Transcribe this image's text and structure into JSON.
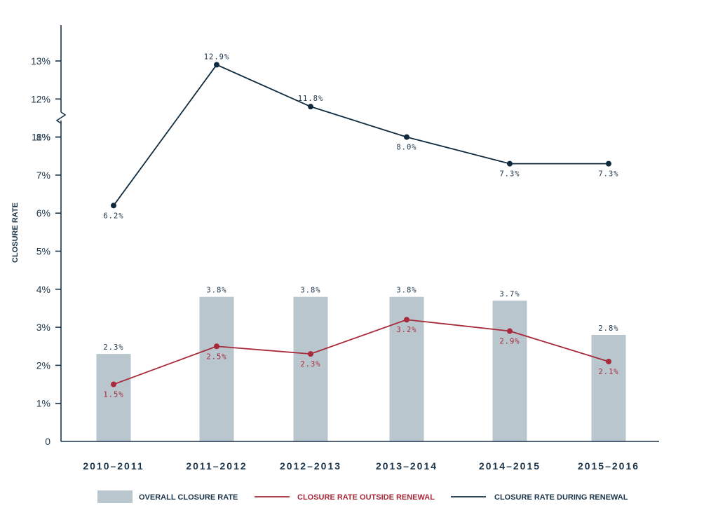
{
  "chart_data": {
    "type": "bar",
    "ylabel": "CLOSURE RATE",
    "xlabel": "",
    "categories": [
      "2010–2011",
      "2011–2012",
      "2012–2013",
      "2013–2014",
      "2014–2015",
      "2015–2016"
    ],
    "yticks": [
      "0",
      "1%",
      "2%",
      "3%",
      "4%",
      "5%",
      "6%",
      "7%",
      "8%",
      "11%",
      "12%",
      "13%"
    ],
    "axis_break": "between 8% and 11%",
    "ylim": [
      0,
      13
    ],
    "grid": false,
    "legend_position": "bottom",
    "series": [
      {
        "name": "OVERALL CLOSURE RATE",
        "type": "bar",
        "values": [
          2.3,
          3.8,
          3.8,
          3.8,
          3.7,
          2.8
        ],
        "labels": [
          "2.3%",
          "3.8%",
          "3.8%",
          "3.8%",
          "3.7%",
          "2.8%"
        ],
        "color": "#b9c6ce"
      },
      {
        "name": "CLOSURE RATE OUTSIDE RENEWAL",
        "type": "line",
        "values": [
          1.5,
          2.5,
          2.3,
          3.2,
          2.9,
          2.1
        ],
        "labels": [
          "1.5%",
          "2.5%",
          "2.3%",
          "3.2%",
          "2.9%",
          "2.1%"
        ],
        "color": "#a8293a"
      },
      {
        "name": "CLOSURE RATE DURING RENEWAL",
        "type": "line",
        "values": [
          6.2,
          12.9,
          11.8,
          8.0,
          7.3,
          7.3
        ],
        "labels": [
          "6.2%",
          "12.9%",
          "11.8%",
          "8.0%",
          "7.3%",
          "7.3%"
        ],
        "color": "#0f2b40"
      }
    ],
    "colors": {
      "axis": "#1b3449",
      "text": "#1b3449"
    }
  }
}
